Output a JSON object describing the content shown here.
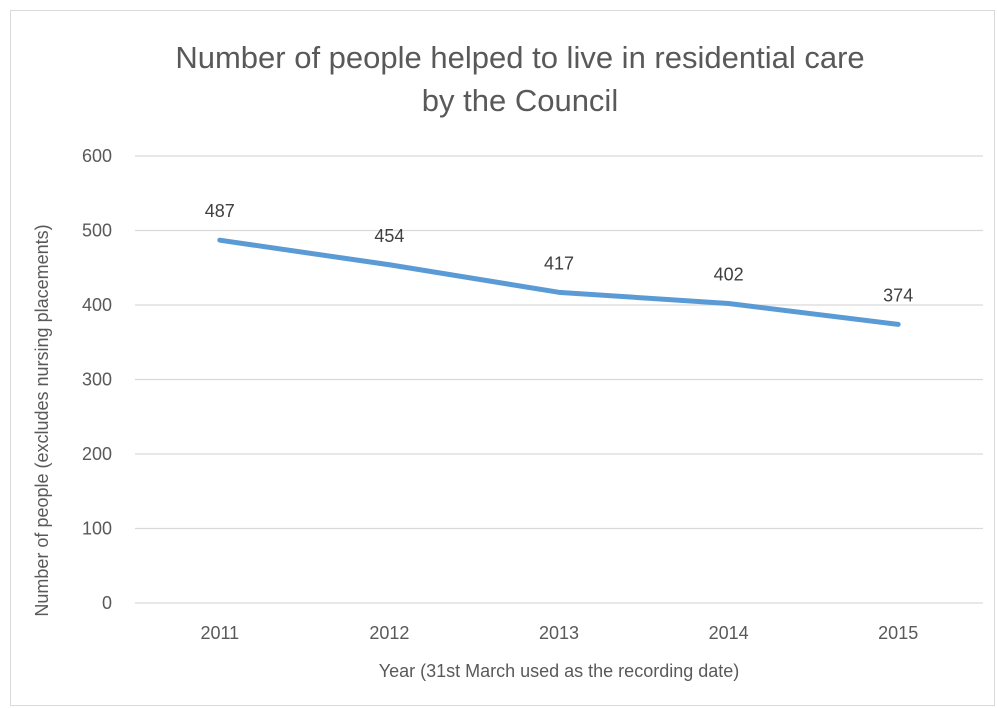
{
  "chart_data": {
    "type": "line",
    "title": "Number of people helped to live in residential care by the Council",
    "xlabel": "Year (31st March used as the recording date)",
    "ylabel": "Number of people (excludes nursing placements)",
    "categories": [
      "2011",
      "2012",
      "2013",
      "2014",
      "2015"
    ],
    "series": [
      {
        "values": [
          487,
          454,
          417,
          402,
          374
        ]
      }
    ],
    "ylim": [
      0,
      600
    ],
    "yticks": [
      0,
      100,
      200,
      300,
      400,
      500,
      600
    ],
    "grid": true,
    "data_labels": true,
    "legend": "none",
    "colors": {
      "line": "#5b9bd5",
      "grid": "#d9d9d9",
      "text": "#595959"
    }
  }
}
